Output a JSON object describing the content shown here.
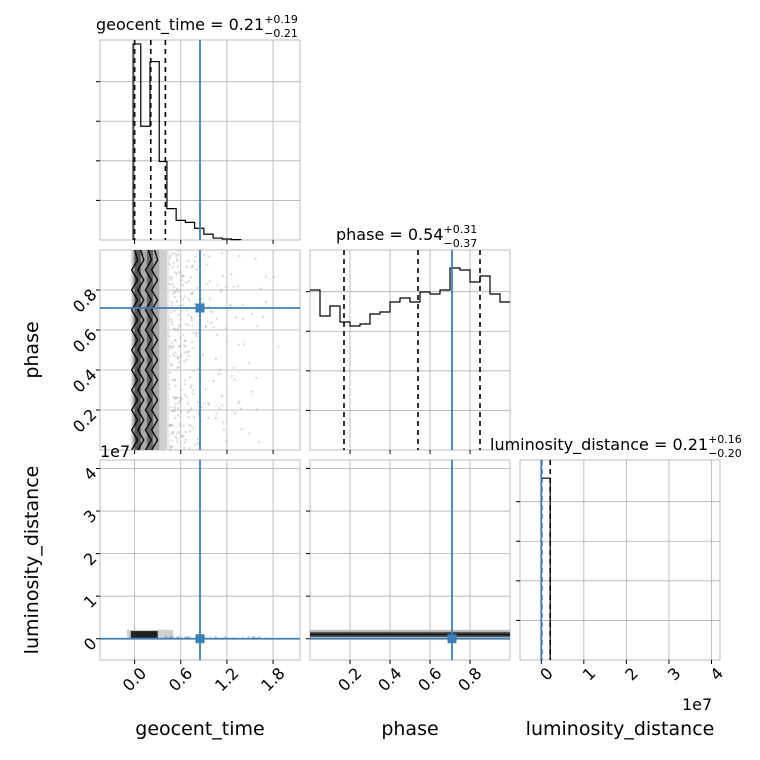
{
  "chart_data": {
    "type": "corner",
    "parameters": [
      "geocent_time",
      "phase",
      "luminosity_distance"
    ],
    "injection": {
      "geocent_time": 0.85,
      "phase": 0.71,
      "luminosity_distance": 0.0
    },
    "colors": {
      "injection": "#3d7fba",
      "hist": "#000000",
      "scatter": "#9a9a9a"
    },
    "axes": {
      "geocent_time": {
        "range": [
          -0.45,
          2.15
        ],
        "ticks": [
          0.0,
          0.6,
          1.2,
          1.8
        ],
        "tick_labels": [
          "0.0",
          "0.6",
          "1.2",
          "1.8"
        ],
        "label": "geocent_time"
      },
      "phase": {
        "range": [
          0.0,
          1.0
        ],
        "ticks": [
          0.2,
          0.4,
          0.6,
          0.8
        ],
        "tick_labels": [
          "0.2",
          "0.4",
          "0.6",
          "0.8"
        ],
        "label": "phase"
      },
      "luminosity_distance": {
        "range": [
          -0.5,
          4.2
        ],
        "ticks": [
          0,
          1,
          2,
          3,
          4
        ],
        "tick_labels": [
          "0",
          "1",
          "2",
          "3",
          "4"
        ],
        "label": "luminosity_distance",
        "offset_text": "1e7"
      }
    },
    "titles": [
      {
        "param": "geocent_time",
        "prefix": "geocent_time = 0.21",
        "plus": "+0.19",
        "minus": "−0.21"
      },
      {
        "param": "phase",
        "prefix": "phase = 0.54",
        "plus": "+0.31",
        "minus": "−0.37"
      },
      {
        "param": "luminosity_distance",
        "prefix": "luminosity_distance = 0.21",
        "plus": "+0.16",
        "minus": "−0.20"
      }
    ],
    "histograms": {
      "geocent_time": {
        "bin_edges": [
          -0.02,
          0.08,
          0.2,
          0.32,
          0.42,
          0.54,
          0.66,
          0.78,
          0.9,
          1.02,
          1.14,
          1.26,
          1.38
        ],
        "counts": [
          1.0,
          0.58,
          0.91,
          0.4,
          0.16,
          0.1,
          0.09,
          0.06,
          0.03,
          0.01,
          0.005,
          0.002
        ],
        "quantiles": [
          0.0,
          0.21,
          0.4
        ]
      },
      "phase": {
        "bin_edges": [
          0.0,
          0.05,
          0.1,
          0.15,
          0.2,
          0.25,
          0.3,
          0.35,
          0.4,
          0.45,
          0.5,
          0.55,
          0.6,
          0.65,
          0.7,
          0.75,
          0.8,
          0.85,
          0.9,
          0.95,
          1.0
        ],
        "counts": [
          0.8,
          0.67,
          0.72,
          0.64,
          0.62,
          0.63,
          0.68,
          0.69,
          0.74,
          0.76,
          0.74,
          0.79,
          0.78,
          0.8,
          0.91,
          0.9,
          0.84,
          0.87,
          0.78,
          0.74
        ],
        "quantiles": [
          0.17,
          0.54,
          0.85
        ],
        "ymax": 1.0
      },
      "luminosity_distance": {
        "bin_edges": [
          0.0,
          0.21
        ],
        "counts": [
          1.0
        ],
        "quantiles": [
          0.01,
          0.21
        ],
        "ymax": 1.1
      }
    },
    "density_2d": {
      "geocent_time_vs_phase": {
        "dense_region_x": [
          -0.05,
          0.45
        ],
        "contour_levels_note": "vertical filled contours near geocent_time 0.0–0.4"
      },
      "geocent_time_vs_luminosity_distance": {
        "dense_region_x": [
          -0.1,
          0.5
        ],
        "dense_region_y": [
          0.0,
          0.21
        ]
      },
      "phase_vs_luminosity_distance": {
        "dense_region_x": [
          0.0,
          1.0
        ],
        "dense_region_y": [
          0.0,
          0.21
        ]
      }
    },
    "grid": true
  }
}
